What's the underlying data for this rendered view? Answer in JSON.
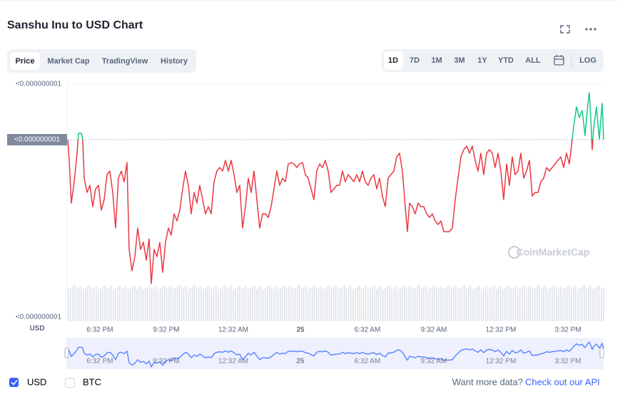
{
  "header": {
    "title": "Sanshu Inu to USD Chart"
  },
  "tabs": [
    "Price",
    "Market Cap",
    "TradingView",
    "History"
  ],
  "ranges": [
    "1D",
    "7D",
    "1M",
    "3M",
    "1Y",
    "YTD",
    "ALL"
  ],
  "log": "LOG",
  "axis": {
    "y_top": "<0.000000001",
    "y_current": "<0.000000001",
    "y_bottom": "<0.000000001",
    "unit": "USD",
    "x_labels": [
      "6:32 PM",
      "9:32 PM",
      "12:32 AM",
      "25",
      "6:32 AM",
      "9:32 AM",
      "12:32 PM",
      "3:32 PM"
    ]
  },
  "watermark": "CoinMarketCap",
  "currencies": [
    "USD",
    "BTC"
  ],
  "footer": {
    "prompt": "Want more data?",
    "link": "Check out our API"
  }
}
